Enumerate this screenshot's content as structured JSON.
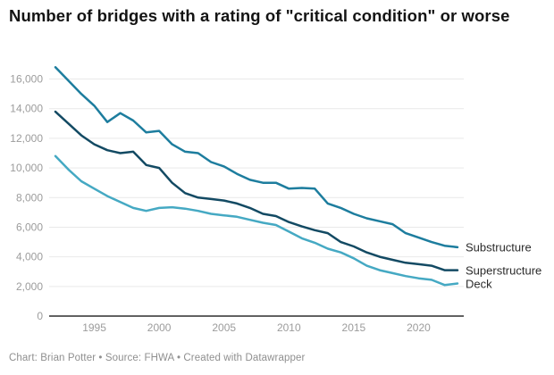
{
  "header": {
    "title": "Number of bridges with a rating of \"critical condition\" or worse"
  },
  "footer": {
    "text": "Chart: Brian Potter • Source: FHWA • Created with Datawrapper"
  },
  "colors": {
    "background": "#ffffff",
    "title": "#141414",
    "grid": "#e9e9e9",
    "zero_axis": "#2f2f2f",
    "tick_label": "#9c9c9c",
    "series_label": "#2b2b2b",
    "footer_text": "#8f8f8f",
    "substructure": "#1d7d9e",
    "superstructure": "#134a63",
    "deck": "#45a9c3"
  },
  "chart_data": {
    "type": "line",
    "title": "Number of bridges with a rating of \"critical condition\" or worse",
    "xlabel": "",
    "ylabel": "",
    "x": [
      1992,
      1993,
      1994,
      1995,
      1996,
      1997,
      1998,
      1999,
      2000,
      2001,
      2002,
      2003,
      2004,
      2005,
      2006,
      2007,
      2008,
      2009,
      2010,
      2011,
      2012,
      2013,
      2014,
      2015,
      2016,
      2017,
      2018,
      2019,
      2020,
      2021,
      2022,
      2023
    ],
    "series": [
      {
        "name": "Substructure",
        "color": "#1d7d9e",
        "values": [
          16800,
          15900,
          15000,
          14200,
          13100,
          13700,
          13200,
          12400,
          12500,
          11600,
          11100,
          11000,
          10400,
          10100,
          9600,
          9200,
          9000,
          9000,
          8600,
          8650,
          8600,
          7600,
          7300,
          6900,
          6600,
          6400,
          6200,
          5600,
          5300,
          5000,
          4750,
          4650
        ]
      },
      {
        "name": "Superstructure",
        "color": "#134a63",
        "values": [
          13800,
          13000,
          12200,
          11600,
          11200,
          11000,
          11100,
          10200,
          10000,
          9000,
          8300,
          8000,
          7900,
          7800,
          7600,
          7300,
          6900,
          6750,
          6350,
          6050,
          5800,
          5600,
          5000,
          4700,
          4300,
          4000,
          3800,
          3600,
          3500,
          3400,
          3100,
          3100
        ]
      },
      {
        "name": "Deck",
        "color": "#45a9c3",
        "values": [
          10800,
          9900,
          9100,
          8600,
          8100,
          7700,
          7300,
          7100,
          7300,
          7350,
          7250,
          7100,
          6900,
          6800,
          6700,
          6500,
          6300,
          6150,
          5700,
          5250,
          4950,
          4550,
          4300,
          3900,
          3400,
          3100,
          2900,
          2700,
          2550,
          2450,
          2100,
          2200
        ]
      }
    ],
    "xticks": [
      1995,
      2000,
      2005,
      2010,
      2015,
      2020
    ],
    "yticks": [
      0,
      2000,
      4000,
      6000,
      8000,
      10000,
      12000,
      14000,
      16000
    ],
    "xlim": [
      1992,
      2023
    ],
    "ylim": [
      0,
      17000
    ],
    "grid": "horizontal-only",
    "legend_position": "labels-at-line-ends-right"
  }
}
